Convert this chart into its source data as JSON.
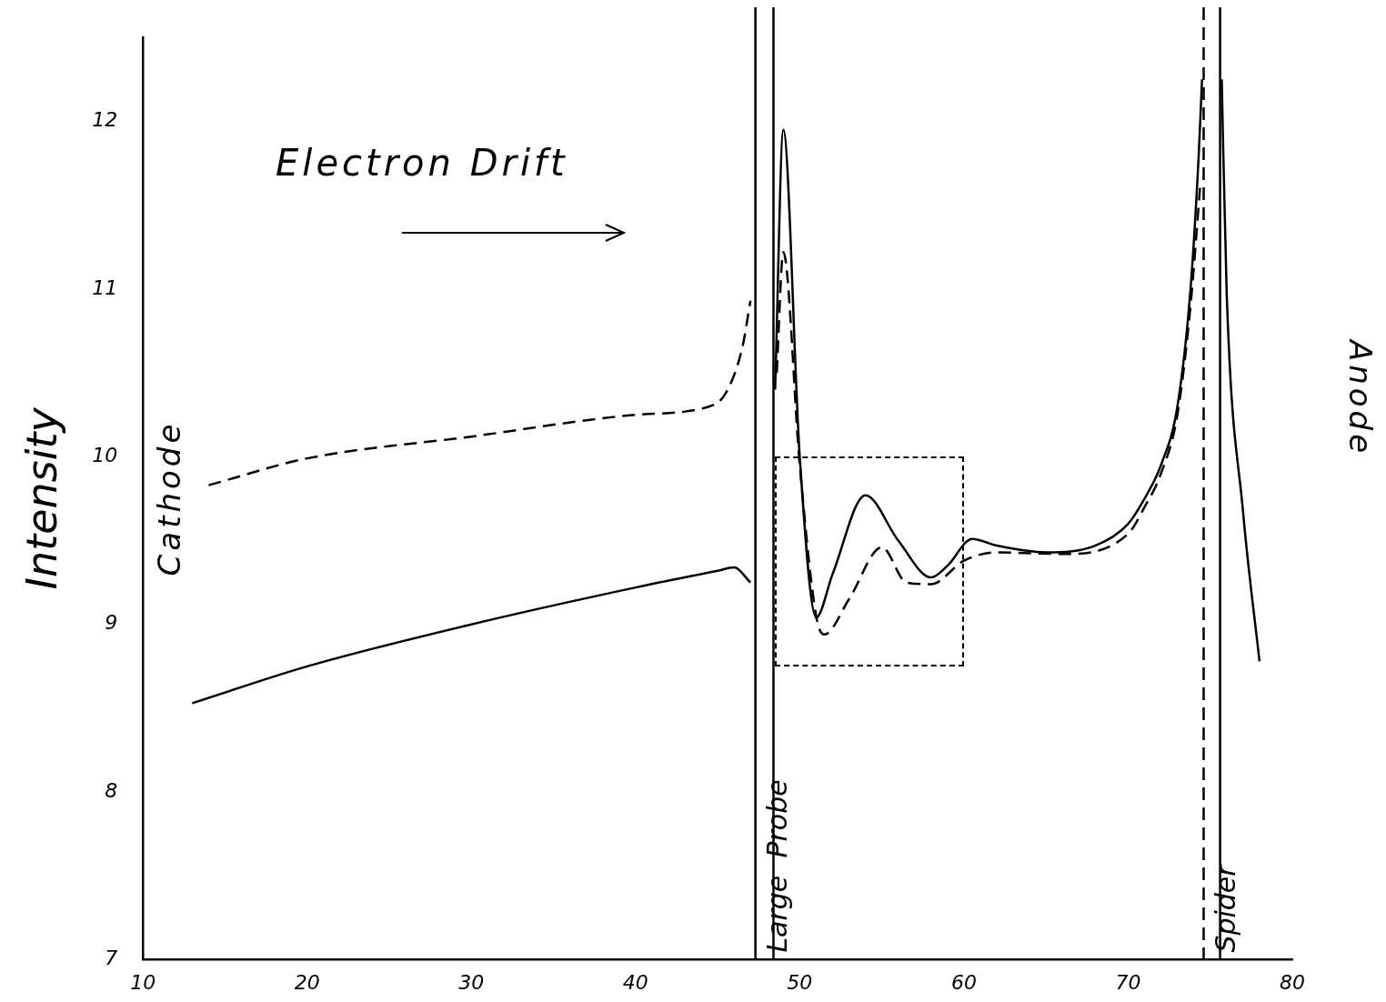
{
  "chart_data": {
    "type": "line",
    "ylabel": "Intensity",
    "annotations": [
      "Electron Drift",
      "Cathode",
      "Anode"
    ],
    "xlim": [
      10,
      80
    ],
    "xticks": [
      10,
      20,
      30,
      40,
      50,
      60,
      70,
      80
    ],
    "ylim": [
      7,
      12.5
    ],
    "yticks": [
      7,
      8,
      9,
      10,
      11,
      12
    ],
    "grid": false,
    "legend": false,
    "marker": "none",
    "series": [
      {
        "color": "#000000",
        "line_style": "solid",
        "x": [
          13,
          20,
          30,
          40,
          45,
          46,
          47,
          47.8,
          48.5,
          49,
          50,
          51,
          52,
          54,
          56,
          58,
          59,
          60.5,
          62,
          65,
          68,
          70,
          71,
          72,
          73,
          73.8,
          74.3,
          74.5,
          75.1,
          75.7,
          76,
          77,
          78
        ],
        "values": [
          8.53,
          8.75,
          9.0,
          9.22,
          9.32,
          9.34,
          9.25,
          null,
          10.4,
          11.95,
          10.0,
          9.04,
          9.3,
          9.77,
          9.5,
          9.28,
          9.35,
          9.51,
          9.47,
          9.43,
          9.47,
          9.6,
          9.75,
          9.95,
          10.3,
          11.0,
          11.8,
          12.25,
          null,
          12.25,
          10.98,
          9.67,
          8.78
        ]
      },
      {
        "color": "#000000",
        "line_style": "dashed",
        "x": [
          14,
          20,
          30,
          40,
          44.5,
          45.5,
          46.5,
          47,
          47.8,
          48.6,
          49,
          50,
          51,
          51.5,
          53,
          55,
          56.5,
          58,
          60,
          62,
          66,
          70,
          71,
          72,
          73,
          73.8,
          74.4
        ],
        "values": [
          9.83,
          9.99,
          10.12,
          10.25,
          10.3,
          10.38,
          10.65,
          10.93,
          null,
          10.5,
          11.22,
          9.95,
          9.05,
          8.94,
          9.15,
          9.46,
          9.25,
          9.24,
          9.38,
          9.43,
          9.42,
          9.54,
          9.7,
          9.9,
          10.25,
          10.9,
          11.63
        ]
      }
    ],
    "ref_lines": [
      {
        "axis": "x",
        "value": 47.3,
        "label": "Large  Probe",
        "line_style": "solid"
      },
      {
        "axis": "x",
        "value": 48.4,
        "line_style": "solid"
      },
      {
        "axis": "x",
        "value": 74.6,
        "label": "Spider",
        "line_style": "dashed"
      },
      {
        "axis": "x",
        "value": 75.6,
        "line_style": "solid"
      }
    ]
  }
}
